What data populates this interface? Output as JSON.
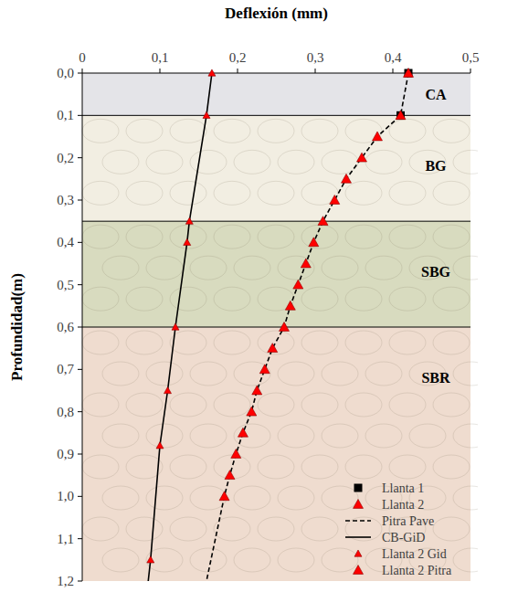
{
  "chart_data": {
    "type": "line",
    "x_label": "Deflexión (mm)",
    "y_label": "Profundidad(m)",
    "xlim": [
      0,
      0.5
    ],
    "xticks": [
      0,
      {
        "value": 0.1,
        "label": "0,1"
      },
      {
        "value": 0.2,
        "label": "0,2"
      },
      {
        "value": 0.3,
        "label": "0,3"
      },
      {
        "value": 0.4,
        "label": "0,4"
      },
      {
        "value": 0.5,
        "label": "0,5"
      }
    ],
    "ylim": [
      0,
      1.2
    ],
    "yticks": [
      {
        "value": 0,
        "label": "0,0"
      },
      {
        "value": 0.1,
        "label": "0,1"
      },
      {
        "value": 0.2,
        "label": "0,2"
      },
      {
        "value": 0.3,
        "label": "0,3"
      },
      {
        "value": 0.4,
        "label": "0,4"
      },
      {
        "value": 0.5,
        "label": "0,5"
      },
      {
        "value": 0.6,
        "label": "0,6"
      },
      {
        "value": 0.7,
        "label": "0,7"
      },
      {
        "value": 0.8,
        "label": "0,8"
      },
      {
        "value": 0.9,
        "label": "0,9"
      },
      {
        "value": 1.0,
        "label": "1,0"
      },
      {
        "value": 1.1,
        "label": "1,1"
      },
      {
        "value": 1.2,
        "label": "1,2"
      }
    ],
    "grid": false,
    "legend": "lower right",
    "layers": [
      {
        "label": "CA",
        "top": 0,
        "bottom": 0.1,
        "color": "#e4e4e8"
      },
      {
        "label": "BG",
        "top": 0.1,
        "bottom": 0.35,
        "color": "#f2eee2"
      },
      {
        "label": "SBG",
        "top": 0.35,
        "bottom": 0.6,
        "color": "#d8dbbf"
      },
      {
        "label": "SBR",
        "top": 0.6,
        "bottom": 1.2,
        "color": "#efdccf"
      }
    ],
    "series": [
      {
        "name": "Llanta 1",
        "type": "scatter",
        "marker": "square",
        "color": "#000000",
        "x": [
          0.42,
          0.41
        ],
        "values": [
          0,
          0.1
        ]
      },
      {
        "name": "Llanta 2",
        "type": "scatter",
        "marker": "triangle",
        "color": "#ff0000",
        "x": [
          0.42,
          0.41
        ],
        "values": [
          0,
          0.1
        ]
      },
      {
        "name": "Pitra Pave",
        "type": "line",
        "line_style": "dashed",
        "color": "#000000",
        "x": [
          0.42,
          0.41,
          0.38,
          0.36,
          0.34,
          0.325,
          0.31,
          0.298,
          0.288,
          0.278,
          0.268,
          0.26,
          0.245,
          0.235,
          0.225,
          0.218,
          0.207,
          0.198,
          0.19,
          0.183,
          0.16
        ],
        "values": [
          0,
          0.1,
          0.15,
          0.2,
          0.25,
          0.3,
          0.35,
          0.4,
          0.45,
          0.5,
          0.55,
          0.6,
          0.65,
          0.7,
          0.75,
          0.8,
          0.85,
          0.9,
          0.95,
          1.0,
          1.2
        ]
      },
      {
        "name": "CB-GiD",
        "type": "line",
        "line_style": "solid",
        "color": "#000000",
        "x": [
          0.167,
          0.16,
          0.138,
          0.135,
          0.12,
          0.11,
          0.1,
          0.088,
          0.085
        ],
        "values": [
          0,
          0.1,
          0.35,
          0.4,
          0.6,
          0.75,
          0.88,
          1.15,
          1.2
        ]
      },
      {
        "name": "Llanta 2 Gid",
        "type": "scatter",
        "marker": "small-triangle",
        "color": "#ff0000",
        "x": [
          0.167,
          0.16,
          0.138,
          0.135,
          0.12,
          0.11,
          0.1,
          0.088
        ],
        "values": [
          0,
          0.1,
          0.35,
          0.4,
          0.6,
          0.75,
          0.88,
          1.15
        ]
      },
      {
        "name": "Llanta 2 Pitra",
        "type": "scatter",
        "marker": "triangle",
        "color": "#ff0000",
        "x": [
          0.38,
          0.36,
          0.34,
          0.325,
          0.31,
          0.298,
          0.288,
          0.278,
          0.268,
          0.26,
          0.245,
          0.235,
          0.225,
          0.218,
          0.207,
          0.198,
          0.19,
          0.183
        ],
        "values": [
          0.15,
          0.2,
          0.25,
          0.3,
          0.35,
          0.4,
          0.45,
          0.5,
          0.55,
          0.6,
          0.65,
          0.7,
          0.75,
          0.8,
          0.85,
          0.9,
          0.95,
          1.0
        ]
      }
    ]
  }
}
